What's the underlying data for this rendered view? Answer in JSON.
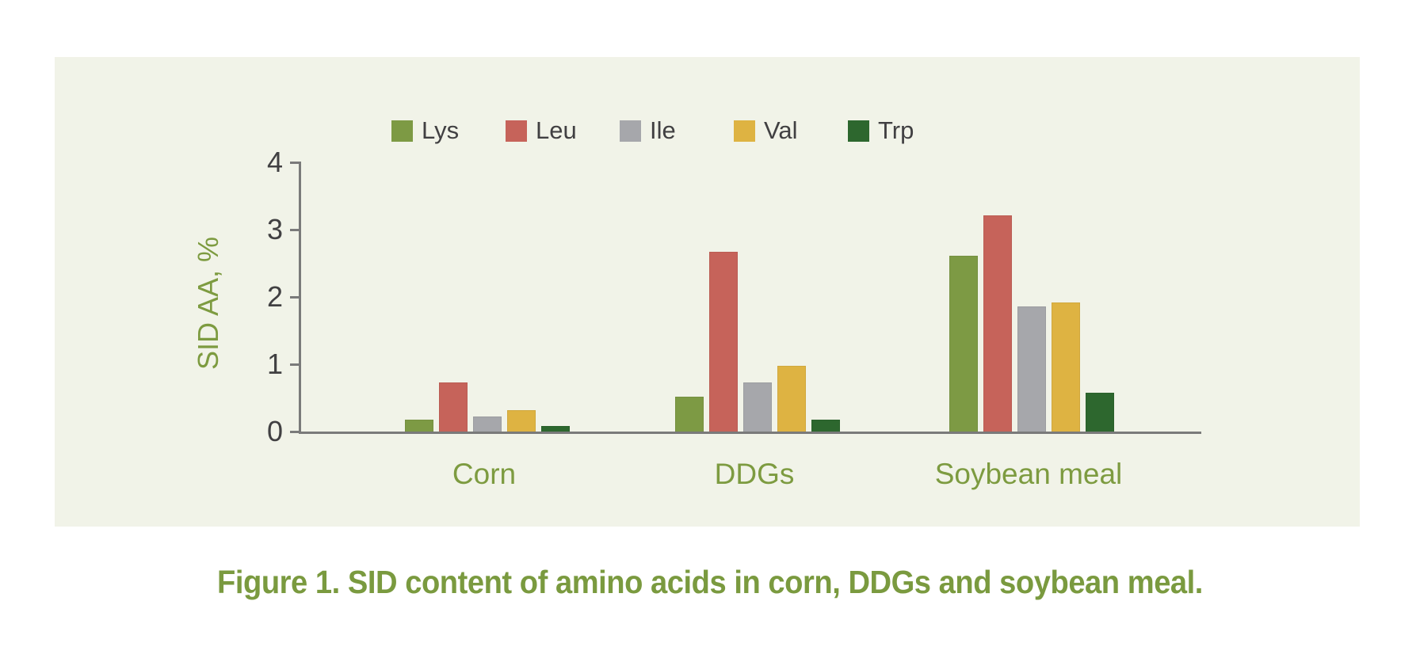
{
  "caption": "Figure 1. SID content of amino acids in corn, DDGs and soybean meal.",
  "colors": {
    "panel_background": "#f1f3e8",
    "page_background": "#ffffff",
    "axis_line": "#7a7a7a",
    "tick_text": "#414042",
    "olive_text": "#7d9b40",
    "caption_text": "#7a9a3f"
  },
  "chart_data": {
    "type": "bar",
    "categories": [
      "Corn",
      "DDGs",
      "Soybean meal"
    ],
    "series": [
      {
        "name": "Lys",
        "color": "#7d9a44",
        "values": [
          0.17,
          0.5,
          2.6
        ]
      },
      {
        "name": "Leu",
        "color": "#c6635a",
        "values": [
          0.72,
          2.66,
          3.2
        ]
      },
      {
        "name": "Ile",
        "color": "#a6a7ab",
        "values": [
          0.21,
          0.72,
          1.85
        ]
      },
      {
        "name": "Val",
        "color": "#deb342",
        "values": [
          0.31,
          0.97,
          1.9
        ]
      },
      {
        "name": "Trp",
        "color": "#2d672e",
        "values": [
          0.07,
          0.17,
          0.56
        ]
      }
    ],
    "title": "",
    "xlabel": "",
    "ylabel": "SID AA, %",
    "yticks": [
      0,
      1,
      2,
      3,
      4
    ],
    "ylim": [
      0,
      4
    ],
    "grid": false,
    "legend_position": "top"
  }
}
